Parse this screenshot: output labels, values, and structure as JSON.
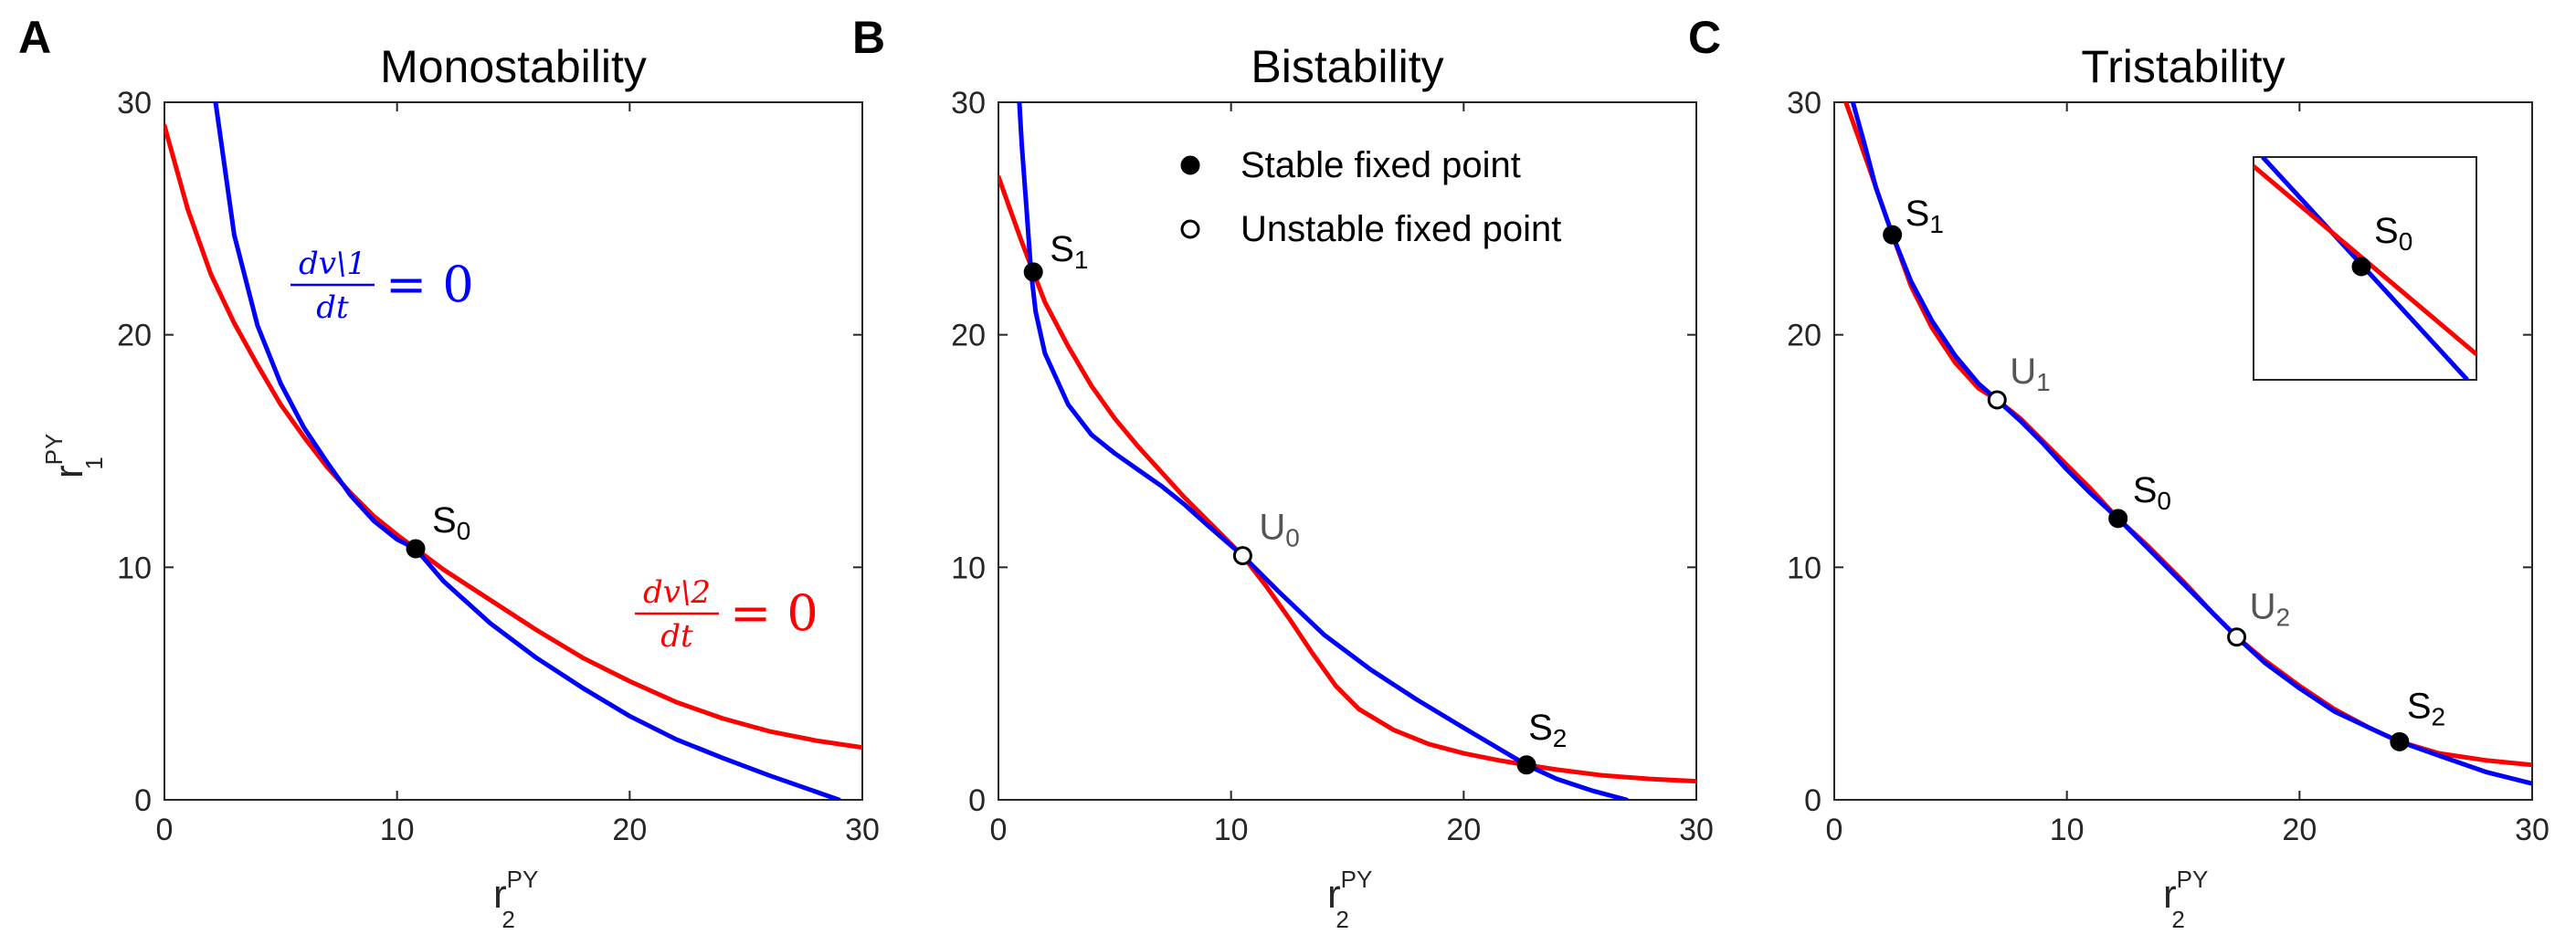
{
  "chart_data": [
    {
      "panel_label": "A",
      "title": "Monostability",
      "type": "line",
      "xlabel": "r",
      "xlabel_sup": "PY",
      "xlabel_sub": "2",
      "ylabel": "r",
      "ylabel_sup": "PY",
      "ylabel_sub": "1",
      "xlim": [
        0,
        30
      ],
      "ylim": [
        0,
        30
      ],
      "xticks": [
        "0",
        "10",
        "20",
        "30"
      ],
      "yticks": [
        "0",
        "10",
        "20",
        "30"
      ],
      "series": [
        {
          "color": "#0000ff",
          "x": [
            2.2,
            3,
            4,
            5,
            6,
            7,
            8,
            9,
            10,
            10.8,
            12,
            14,
            16,
            18,
            20,
            22,
            24,
            26,
            28,
            29
          ],
          "y": [
            30,
            24.3,
            20.4,
            17.9,
            16.0,
            14.5,
            13.1,
            12.0,
            11.2,
            10.8,
            9.4,
            7.6,
            6.1,
            4.8,
            3.6,
            2.6,
            1.8,
            1.05,
            0.35,
            0
          ]
        },
        {
          "color": "#ff0000",
          "x": [
            0,
            1,
            2,
            3,
            4,
            5,
            6,
            7,
            8,
            9,
            10,
            10.8,
            12,
            14,
            16,
            18,
            20,
            22,
            24,
            26,
            28,
            30
          ],
          "y": [
            29,
            25.4,
            22.6,
            20.5,
            18.7,
            17.0,
            15.6,
            14.3,
            13.2,
            12.2,
            11.4,
            10.8,
            9.9,
            8.6,
            7.3,
            6.1,
            5.1,
            4.2,
            3.5,
            2.95,
            2.55,
            2.25
          ]
        }
      ],
      "equations": [
        {
          "numerator": "dv\\1",
          "denominator": "dt",
          "rhs": "= 0",
          "color": "#0000ff"
        },
        {
          "numerator": "dv\\2",
          "denominator": "dt",
          "rhs": "= 0",
          "color": "#ff0000"
        }
      ],
      "points": [
        {
          "label": "S",
          "sub": "0",
          "x": 10.8,
          "y": 10.8,
          "stable": true
        }
      ]
    },
    {
      "panel_label": "B",
      "title": "Bistability",
      "type": "line",
      "xlabel": "r",
      "xlabel_sup": "PY",
      "xlabel_sub": "2",
      "xlim": [
        0,
        30
      ],
      "ylim": [
        0,
        30
      ],
      "xticks": [
        "0",
        "10",
        "20",
        "30"
      ],
      "yticks": [
        "0",
        "10",
        "20",
        "30"
      ],
      "legend": {
        "position": "top-right",
        "entries": [
          {
            "label": "Stable fixed point",
            "stable": true
          },
          {
            "label": "Unstable fixed point",
            "stable": false
          }
        ]
      },
      "series": [
        {
          "color": "#0000ff",
          "x": [
            0.9,
            1.0,
            1.2,
            1.4,
            1.6,
            2,
            3,
            4,
            5,
            6,
            7,
            8,
            9,
            10.5,
            12,
            14,
            16,
            18,
            20,
            22.7,
            24,
            25.5,
            27
          ],
          "y": [
            30,
            28.2,
            25.5,
            22.7,
            21.0,
            19.2,
            17.0,
            15.7,
            14.9,
            14.2,
            13.5,
            12.7,
            11.8,
            10.5,
            9.0,
            7.1,
            5.6,
            4.3,
            3.1,
            1.5,
            0.9,
            0.4,
            0
          ]
        },
        {
          "color": "#ff0000",
          "x": [
            0,
            0.5,
            1.0,
            1.5,
            2,
            3,
            4,
            5,
            6,
            7,
            8,
            9,
            10.5,
            11.5,
            12.5,
            13.5,
            14.5,
            15.5,
            17,
            18.5,
            20,
            21.5,
            22.7,
            24,
            26,
            28,
            30
          ],
          "y": [
            26.8,
            25.4,
            24.0,
            22.7,
            21.4,
            19.5,
            17.8,
            16.4,
            15.2,
            14.1,
            13.0,
            12.0,
            10.5,
            9.2,
            7.8,
            6.3,
            4.9,
            3.9,
            3.0,
            2.4,
            2.0,
            1.7,
            1.5,
            1.3,
            1.05,
            0.9,
            0.8
          ]
        }
      ],
      "points": [
        {
          "label": "S",
          "sub": "1",
          "x": 1.5,
          "y": 22.7,
          "stable": true
        },
        {
          "label": "U",
          "sub": "0",
          "x": 10.5,
          "y": 10.5,
          "stable": false
        },
        {
          "label": "S",
          "sub": "2",
          "x": 22.7,
          "y": 1.5,
          "stable": true
        }
      ]
    },
    {
      "panel_label": "C",
      "title": "Tristability",
      "type": "line",
      "xlabel": "r",
      "xlabel_sup": "PY",
      "xlabel_sub": "2",
      "xlim": [
        0,
        30
      ],
      "ylim": [
        0,
        30
      ],
      "xticks": [
        "0",
        "10",
        "20",
        "30"
      ],
      "yticks": [
        "0",
        "10",
        "20",
        "30"
      ],
      "series": [
        {
          "color": "#0000ff",
          "x": [
            0.8,
            1.3,
            1.8,
            2.5,
            3.3,
            4.2,
            5.2,
            6.2,
            7,
            8,
            9,
            10,
            11,
            12.2,
            13.5,
            15,
            16.3,
            17.3,
            18.5,
            20,
            21.5,
            23,
            24.3,
            26,
            28,
            30
          ],
          "y": [
            30,
            28.2,
            26.3,
            24.3,
            22.3,
            20.6,
            19.1,
            17.9,
            17.2,
            16.3,
            15.3,
            14.2,
            13.2,
            12.1,
            10.8,
            9.3,
            8.0,
            7.0,
            5.9,
            4.8,
            3.8,
            3.1,
            2.5,
            1.9,
            1.2,
            0.7
          ]
        },
        {
          "color": "#ff0000",
          "x": [
            0.5,
            1,
            1.6,
            2.5,
            3.3,
            4.2,
            5.2,
            6.2,
            7,
            8,
            9,
            10,
            11,
            12.2,
            13.5,
            15,
            16.3,
            17.3,
            18.5,
            20,
            21.5,
            23,
            24.3,
            26,
            28,
            30
          ],
          "y": [
            30,
            28.6,
            26.9,
            24.3,
            22.1,
            20.3,
            18.8,
            17.7,
            17.2,
            16.4,
            15.4,
            14.4,
            13.4,
            12.1,
            10.9,
            9.4,
            8.0,
            7.0,
            6.0,
            4.9,
            3.9,
            3.1,
            2.5,
            2.0,
            1.7,
            1.5
          ]
        }
      ],
      "inset": {
        "series_colors": [
          "#0000ff",
          "#ff0000"
        ],
        "point": {
          "label": "S",
          "sub": "0",
          "stable": true
        }
      },
      "points": [
        {
          "label": "S",
          "sub": "1",
          "x": 2.5,
          "y": 24.3,
          "stable": true
        },
        {
          "label": "U",
          "sub": "1",
          "x": 7.0,
          "y": 17.2,
          "stable": false
        },
        {
          "label": "S",
          "sub": "0",
          "x": 12.2,
          "y": 12.1,
          "stable": true
        },
        {
          "label": "U",
          "sub": "2",
          "x": 17.3,
          "y": 7.0,
          "stable": false
        },
        {
          "label": "S",
          "sub": "2",
          "x": 24.3,
          "y": 2.5,
          "stable": true
        }
      ]
    }
  ]
}
